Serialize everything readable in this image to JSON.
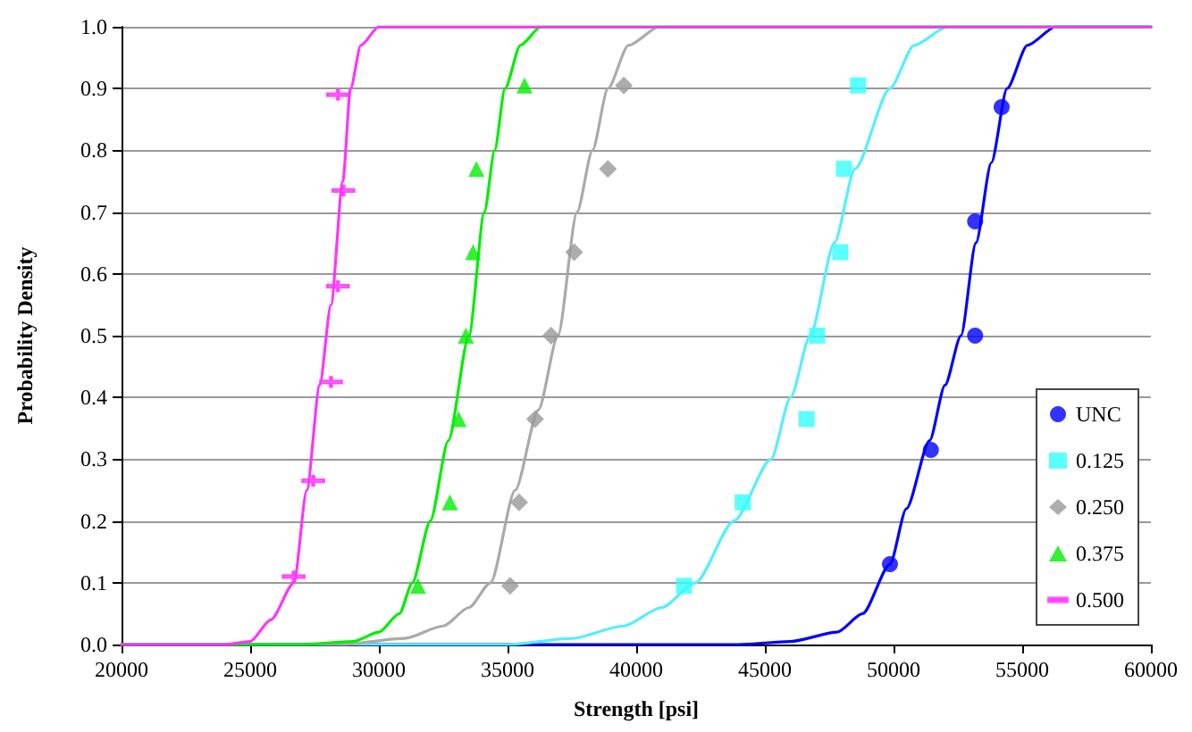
{
  "chart_data": {
    "type": "scatter",
    "xlabel": "Strength [psi]",
    "ylabel": "Probability Density",
    "xlim": [
      20000,
      60000
    ],
    "xticks": [
      20000,
      25000,
      30000,
      35000,
      40000,
      45000,
      50000,
      55000,
      60000
    ],
    "ylim": [
      0,
      1
    ],
    "yticks": [
      {
        "value": 0,
        "label": "0.0"
      },
      {
        "value": 0.1,
        "label": "0.1"
      },
      {
        "value": 0.2,
        "label": "0.2"
      },
      {
        "value": 0.3,
        "label": "0.3"
      },
      {
        "value": 0.4,
        "label": "0.4"
      },
      {
        "value": 0.5,
        "label": "0.5"
      },
      {
        "value": 0.6,
        "label": "0.6"
      },
      {
        "value": 0.7,
        "label": "0.7"
      },
      {
        "value": 0.8,
        "label": "0.8"
      },
      {
        "value": 0.9,
        "label": "0.9"
      },
      {
        "value": 1,
        "label": "1.0"
      }
    ],
    "grid": "y",
    "legend": "bottom right",
    "series": [
      {
        "name": "UNC",
        "type": "scatter",
        "marker": "circle",
        "color": "#0000ff",
        "x": [
          49860,
          51450,
          53170,
          53170,
          54200
        ],
        "values": [
          0.13,
          0.315,
          0.5,
          0.685,
          0.87
        ]
      },
      {
        "name": "0.125",
        "type": "scatter",
        "marker": "square",
        "color": "#33ffff",
        "x": [
          41860,
          44140,
          46620,
          47030,
          47930,
          48070,
          48620
        ],
        "values": [
          0.095,
          0.23,
          0.365,
          0.5,
          0.635,
          0.77,
          0.905
        ]
      },
      {
        "name": "0.250",
        "type": "scatter",
        "marker": "diamond",
        "color": "#999999",
        "x": [
          35100,
          35450,
          36070,
          36690,
          37590,
          38900,
          39520
        ],
        "values": [
          0.095,
          0.23,
          0.365,
          0.5,
          0.635,
          0.77,
          0.905
        ]
      },
      {
        "name": "0.375",
        "type": "scatter",
        "marker": "triangle",
        "color": "#00ee00",
        "x": [
          31520,
          32760,
          33100,
          33380,
          33660,
          33790,
          35660
        ],
        "values": [
          0.095,
          0.23,
          0.365,
          0.5,
          0.635,
          0.77,
          0.905
        ]
      },
      {
        "name": "0.500",
        "type": "scatter",
        "color": "#ff33ff",
        "x": [
          26690,
          27450,
          28140,
          28410,
          28620,
          28410
        ],
        "values": [
          0.11,
          0.265,
          0.425,
          0.58,
          0.735,
          0.89
        ]
      },
      {
        "type": "line",
        "marker": "none",
        "color": "#0000ff",
        "x": [
          20000,
          44000,
          46000,
          47800,
          48800,
          49860,
          50500,
          51400,
          52000,
          52620,
          53200,
          53800,
          54410,
          55200,
          56300,
          60000
        ],
        "values": [
          0,
          0,
          0.005,
          0.02,
          0.05,
          0.13,
          0.22,
          0.33,
          0.42,
          0.5,
          0.65,
          0.78,
          0.9,
          0.97,
          1,
          1
        ]
      },
      {
        "type": "line",
        "marker": "none",
        "color": "#55eeff",
        "x": [
          20000,
          35000,
          37500,
          39500,
          41000,
          42300,
          43800,
          45240,
          46000,
          46760,
          47700,
          48500,
          49860,
          50800,
          52100,
          60000
        ],
        "values": [
          0,
          0,
          0.01,
          0.03,
          0.06,
          0.1,
          0.2,
          0.3,
          0.4,
          0.5,
          0.65,
          0.77,
          0.9,
          0.97,
          1,
          1
        ]
      },
      {
        "type": "line",
        "marker": "none",
        "color": "#aaaaaa",
        "x": [
          20000,
          28500,
          31000,
          32500,
          33500,
          34340,
          35300,
          36200,
          36960,
          37700,
          38300,
          38900,
          39700,
          40900,
          60000
        ],
        "values": [
          0,
          0,
          0.01,
          0.03,
          0.06,
          0.1,
          0.25,
          0.38,
          0.5,
          0.7,
          0.8,
          0.9,
          0.97,
          1,
          1
        ]
      },
      {
        "type": "line",
        "marker": "none",
        "color": "#00ee00",
        "x": [
          20000,
          27000,
          29000,
          30000,
          30800,
          31300,
          32000,
          32700,
          33500,
          34100,
          34500,
          34900,
          35500,
          36300,
          60000
        ],
        "values": [
          0,
          0,
          0.005,
          0.02,
          0.05,
          0.1,
          0.2,
          0.33,
          0.5,
          0.7,
          0.8,
          0.9,
          0.97,
          1,
          1
        ]
      },
      {
        "type": "line",
        "marker": "none",
        "color": "#ff33ff",
        "x": [
          20000,
          24000,
          25000,
          25800,
          26700,
          27200,
          27700,
          28140,
          28600,
          28900,
          29300,
          30000,
          60000
        ],
        "values": [
          0,
          0,
          0.005,
          0.04,
          0.1,
          0.25,
          0.42,
          0.55,
          0.75,
          0.9,
          0.97,
          1,
          1
        ]
      }
    ]
  }
}
